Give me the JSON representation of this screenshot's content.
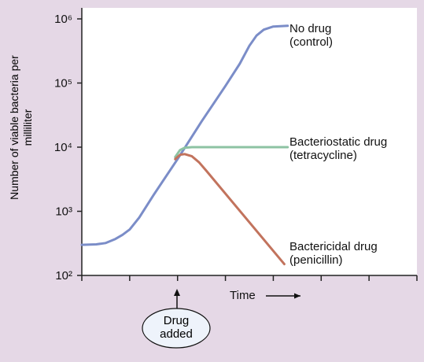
{
  "chart_data": {
    "type": "line",
    "ylabel": "Number of viable bacteria per milliliter",
    "xlabel": "Time",
    "log_y": true,
    "ylim": [
      100,
      1000000
    ],
    "yticks": [
      {
        "value": 100,
        "label": "10²"
      },
      {
        "value": 1000,
        "label": "10³"
      },
      {
        "value": 10000,
        "label": "10⁴"
      },
      {
        "value": 100000,
        "label": "10⁵"
      },
      {
        "value": 1000000,
        "label": "10⁶"
      }
    ],
    "xlim": [
      0,
      7
    ],
    "xticks": [
      0,
      1,
      2,
      3,
      4,
      5,
      6,
      7
    ],
    "series": [
      {
        "name": "No drug (control)",
        "color": "#7b8dc8",
        "x": [
          0,
          0.3,
          0.5,
          0.7,
          0.85,
          1,
          1.2,
          1.5,
          2,
          2.5,
          3,
          3.3,
          3.5,
          3.65,
          3.8,
          4,
          4.3
        ],
        "values": [
          300,
          305,
          320,
          370,
          430,
          520,
          800,
          1800,
          6500,
          25000,
          90000,
          200000,
          380000,
          550000,
          680000,
          760000,
          780000
        ]
      },
      {
        "name": "Bacteriostatic drug (tetracycline)",
        "color": "#8dc3a3",
        "x": [
          1.95,
          2.05,
          2.15,
          2.3,
          4.3
        ],
        "values": [
          7000,
          9000,
          9800,
          10000,
          10000
        ]
      },
      {
        "name": "Bactericidal drug (penicillin)",
        "color": "#c2735d",
        "x": [
          1.95,
          2.05,
          2.15,
          2.3,
          2.45,
          2.6,
          4.23
        ],
        "values": [
          6500,
          7600,
          7800,
          7200,
          5800,
          4300,
          150
        ]
      }
    ],
    "annotation": {
      "text": "Drug added",
      "x": 2
    }
  }
}
